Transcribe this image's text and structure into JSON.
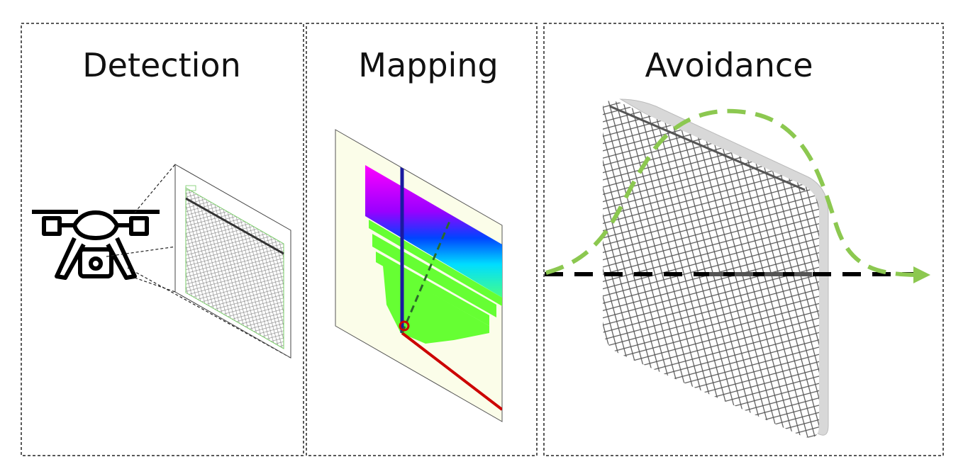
{
  "panels": [
    {
      "title": "Detection"
    },
    {
      "title": "Mapping"
    },
    {
      "title": "Avoidance"
    }
  ]
}
